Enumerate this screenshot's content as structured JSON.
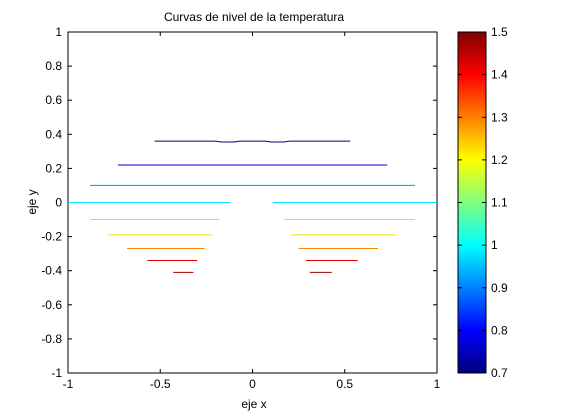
{
  "chart_data": {
    "type": "contour",
    "title": "Curvas de nivel de la temperatura",
    "xlabel": "eje x",
    "ylabel": "eje y",
    "xlim": [
      -1,
      1
    ],
    "ylim": [
      -1,
      1
    ],
    "xticks": [
      "-1",
      "-0.5",
      "0",
      "0.5",
      "1"
    ],
    "yticks": [
      "-1",
      "-0.8",
      "-0.6",
      "-0.4",
      "-0.2",
      "0",
      "0.2",
      "0.4",
      "0.6",
      "0.8",
      "1"
    ],
    "grid": false,
    "colorbar": {
      "range": [
        0.7,
        1.5
      ],
      "ticks": [
        "0.7",
        "0.8",
        "0.9",
        "1",
        "1.1",
        "1.2",
        "1.3",
        "1.4",
        "1.5"
      ],
      "colormap": "jet"
    },
    "contours": [
      {
        "level": 0.75,
        "color": "#000080",
        "segments": [
          [
            [
              -0.53,
              0.36
            ],
            [
              -0.2,
              0.36
            ],
            [
              -0.17,
              0.355
            ],
            [
              -0.1,
              0.355
            ],
            [
              -0.07,
              0.36
            ],
            [
              0.07,
              0.36
            ],
            [
              0.1,
              0.355
            ],
            [
              0.17,
              0.355
            ],
            [
              0.2,
              0.36
            ],
            [
              0.53,
              0.36
            ]
          ]
        ]
      },
      {
        "level": 0.85,
        "color": "#0000c8",
        "segments": [
          [
            [
              -0.73,
              0.22
            ],
            [
              0.73,
              0.22
            ]
          ]
        ]
      },
      {
        "level": 0.95,
        "color": "#0094ff",
        "segments": [
          [
            [
              -0.88,
              0.1
            ],
            [
              0.88,
              0.1
            ]
          ]
        ]
      },
      {
        "level": 1.0,
        "color": "#00e5ff",
        "segments": [
          [
            [
              -1.0,
              0.0
            ],
            [
              -0.12,
              0.0
            ]
          ],
          [
            [
              0.11,
              0.0
            ],
            [
              1.0,
              0.0
            ]
          ]
        ]
      },
      {
        "level": 1.1,
        "color": "#7dff7d",
        "segments": [
          [
            [
              -0.88,
              -0.1
            ],
            [
              -0.18,
              -0.1
            ]
          ],
          [
            [
              0.17,
              -0.1
            ],
            [
              0.88,
              -0.1
            ]
          ]
        ]
      },
      {
        "level": 1.2,
        "color": "#f0e000",
        "segments": [
          [
            [
              -0.78,
              -0.19
            ],
            [
              -0.22,
              -0.19
            ]
          ],
          [
            [
              0.21,
              -0.19
            ],
            [
              0.78,
              -0.19
            ]
          ]
        ]
      },
      {
        "level": 1.3,
        "color": "#ff8a00",
        "segments": [
          [
            [
              -0.68,
              -0.27
            ],
            [
              -0.26,
              -0.27
            ]
          ],
          [
            [
              0.25,
              -0.27
            ],
            [
              0.68,
              -0.27
            ]
          ]
        ]
      },
      {
        "level": 1.4,
        "color": "#e00000",
        "segments": [
          [
            [
              -0.57,
              -0.34
            ],
            [
              -0.3,
              -0.34
            ]
          ],
          [
            [
              0.29,
              -0.34
            ],
            [
              0.57,
              -0.34
            ]
          ]
        ]
      },
      {
        "level": 1.45,
        "color": "#a00000",
        "segments": [
          [
            [
              -0.43,
              -0.41
            ],
            [
              -0.32,
              -0.41
            ]
          ],
          [
            [
              0.31,
              -0.41
            ],
            [
              0.43,
              -0.41
            ]
          ]
        ]
      }
    ]
  }
}
